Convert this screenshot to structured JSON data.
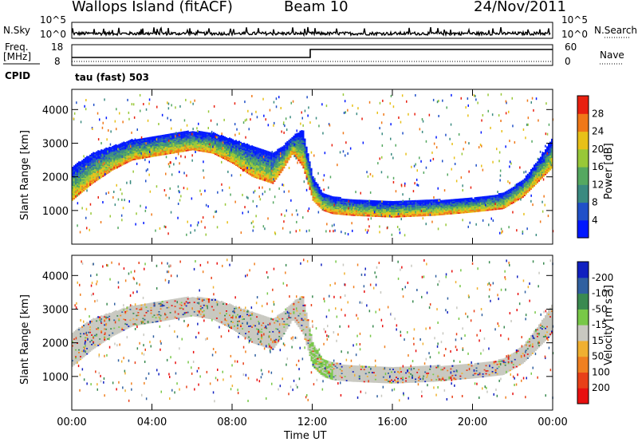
{
  "header": {
    "station": "Wallops Island (fitACF)",
    "beam": "Beam 10",
    "date": "24/Nov/2011"
  },
  "panels": {
    "nsky_label": "N.Sky",
    "nsky_ticks": [
      "10^5",
      "10^0"
    ],
    "nsearch_label": "N.Search",
    "freq_label": "Freq.",
    "freq_unit": "[MHz]",
    "freq_ticks": [
      "18",
      "8"
    ],
    "nave_label": "Nave",
    "nave_ticks": [
      "60",
      "0"
    ],
    "cpid_label": "CPID",
    "cpid_text": "tau (fast) 503"
  },
  "chart_data": [
    {
      "type": "heatmap",
      "name": "power",
      "xlabel": "Time UT",
      "ylabel": "Slant Range [km]",
      "ylim": [
        0,
        4600
      ],
      "xlim": [
        0,
        24
      ],
      "x_ticks": [
        "00:00",
        "04:00",
        "08:00",
        "12:00",
        "16:00",
        "20:00",
        "00:00"
      ],
      "y_ticks": [
        1000,
        2000,
        3000,
        4000
      ],
      "colorbar_label": "Power [dB]",
      "colorbar_ticks": [
        4,
        8,
        12,
        16,
        20,
        24,
        28
      ],
      "colorbar_colors": [
        "#0018ff",
        "#2050c8",
        "#3a8a80",
        "#55a860",
        "#98c838",
        "#e8c018",
        "#f07818",
        "#e82010"
      ],
      "echo_bands": [
        {
          "t": [
            0,
            1,
            2,
            3,
            4,
            5,
            6,
            7,
            8,
            9,
            10,
            10.5,
            11,
            11.5,
            12,
            12.5,
            13,
            14,
            16,
            18,
            20,
            21.5,
            22.5,
            23,
            23.5,
            24
          ],
          "lower": [
            1300,
            1800,
            2200,
            2500,
            2600,
            2700,
            2800,
            2700,
            2400,
            2000,
            1800,
            2200,
            2700,
            2300,
            1300,
            1000,
            900,
            850,
            800,
            850,
            950,
            1050,
            1400,
            1700,
            2000,
            2300
          ],
          "upper": [
            2300,
            2700,
            2900,
            3100,
            3200,
            3300,
            3350,
            3300,
            3100,
            2900,
            2700,
            2900,
            3200,
            3400,
            2000,
            1500,
            1400,
            1300,
            1250,
            1300,
            1350,
            1500,
            1900,
            2300,
            2700,
            3200
          ]
        }
      ]
    },
    {
      "type": "heatmap",
      "name": "velocity",
      "xlabel": "Time UT",
      "ylabel": "Slant Range [km]",
      "ylim": [
        0,
        4600
      ],
      "xlim": [
        0,
        24
      ],
      "x_ticks": [
        "00:00",
        "04:00",
        "08:00",
        "12:00",
        "16:00",
        "20:00",
        "00:00"
      ],
      "y_ticks": [
        1000,
        2000,
        3000,
        4000
      ],
      "colorbar_label": "Velocity [m s⁻¹]",
      "colorbar_ticks": [
        200,
        100,
        50,
        15,
        -15,
        -50,
        -100,
        -200
      ],
      "colorbar_colors": [
        "#1020c0",
        "#3060a0",
        "#3a8a50",
        "#78c848",
        "#c8c8c0",
        "#f0b030",
        "#f08020",
        "#e84018",
        "#e81010"
      ]
    }
  ]
}
